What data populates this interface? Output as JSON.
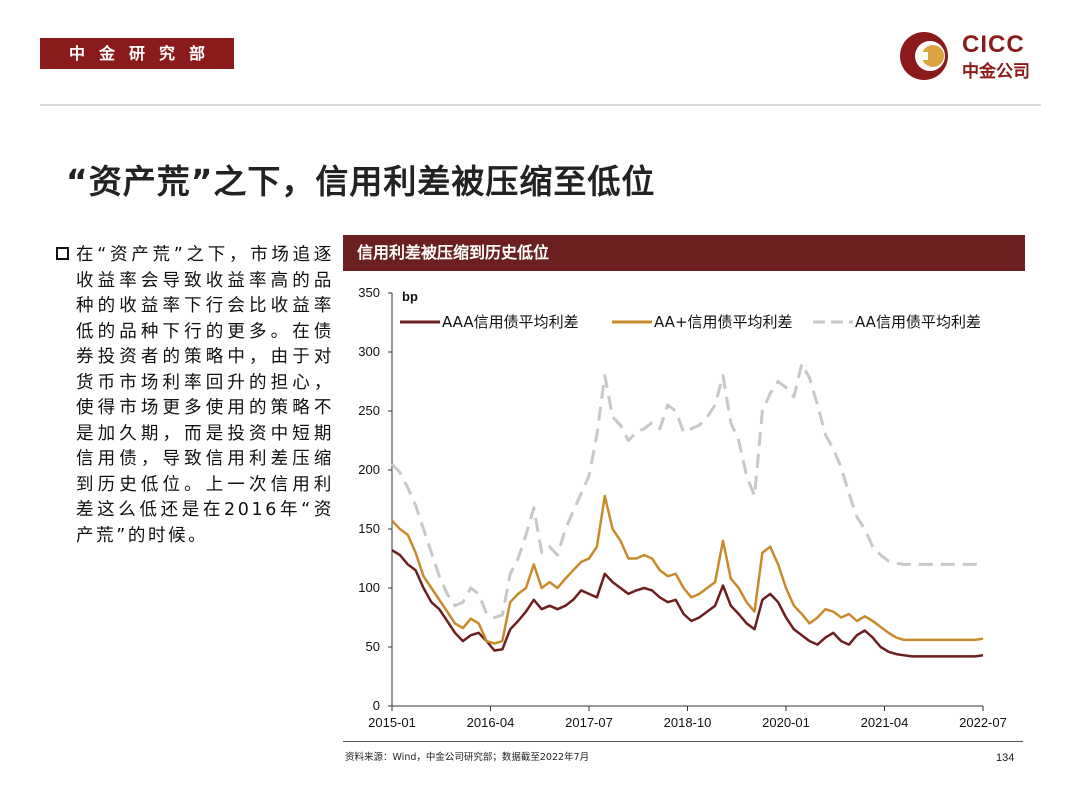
{
  "header": {
    "department": "中金研究部",
    "logo_en": "CICC",
    "logo_zh": "中金公司"
  },
  "page_title": "“资产荒”之下，信用利差被压缩至低位",
  "bullet": "在“资产荒”之下，市场追逐收益率会导致收益率高的品种的收益率下行会比收益率低的品种下行的更多。在债券投资者的策略中，由于对货币市场利率回升的担心，使得市场更多使用的策略不是加久期，而是投资中短期信用债，导致信用利差压缩到历史低位。上一次信用利差这么低还是在2016年“资产荒”的时候。",
  "footer": {
    "source": "资料来源：Wind，中金公司研究部；数据截至2022年7月",
    "page_number": "134"
  },
  "colors": {
    "brand": "#8B1A1A",
    "header_bar": "#6B1F1F",
    "aaa": "#6B1F1F",
    "aa_plus": "#C98A2E",
    "aa": "#C8C8C8"
  },
  "chart_data": {
    "type": "line",
    "title": "信用利差被压缩到历史低位",
    "ylabel": "bp",
    "xlabel": "",
    "ylim": [
      0,
      350
    ],
    "yticks": [
      0,
      50,
      100,
      150,
      200,
      250,
      300,
      350
    ],
    "xlim": [
      2015.0,
      2022.5
    ],
    "xtick_labels": [
      "2015-01",
      "2016-04",
      "2017-07",
      "2018-10",
      "2020-01",
      "2021-04",
      "2022-07"
    ],
    "xtick_values": [
      2015.0,
      2016.25,
      2017.5,
      2018.75,
      2020.0,
      2021.25,
      2022.5
    ],
    "legend_position": "top",
    "series": [
      {
        "name": "AAA信用债平均利差",
        "style": "solid",
        "x": [
          2015.0,
          2015.1,
          2015.2,
          2015.3,
          2015.4,
          2015.5,
          2015.6,
          2015.7,
          2015.8,
          2015.9,
          2016.0,
          2016.1,
          2016.2,
          2016.3,
          2016.4,
          2016.5,
          2016.6,
          2016.7,
          2016.8,
          2016.9,
          2017.0,
          2017.1,
          2017.2,
          2017.3,
          2017.4,
          2017.5,
          2017.6,
          2017.7,
          2017.8,
          2017.9,
          2018.0,
          2018.1,
          2018.2,
          2018.3,
          2018.4,
          2018.5,
          2018.6,
          2018.7,
          2018.8,
          2018.9,
          2019.0,
          2019.1,
          2019.2,
          2019.3,
          2019.4,
          2019.5,
          2019.6,
          2019.7,
          2019.8,
          2019.9,
          2020.0,
          2020.1,
          2020.2,
          2020.3,
          2020.4,
          2020.5,
          2020.6,
          2020.7,
          2020.8,
          2020.9,
          2021.0,
          2021.1,
          2021.2,
          2021.3,
          2021.4,
          2021.5,
          2021.6,
          2021.7,
          2021.8,
          2021.9,
          2022.0,
          2022.1,
          2022.2,
          2022.3,
          2022.4,
          2022.5
        ],
        "values": [
          132,
          128,
          120,
          115,
          100,
          88,
          82,
          72,
          62,
          55,
          60,
          62,
          55,
          47,
          48,
          65,
          72,
          80,
          90,
          82,
          85,
          82,
          85,
          90,
          98,
          95,
          92,
          112,
          105,
          100,
          95,
          98,
          100,
          98,
          92,
          88,
          90,
          78,
          72,
          75,
          80,
          85,
          102,
          85,
          78,
          70,
          65,
          90,
          95,
          88,
          75,
          65,
          60,
          55,
          52,
          58,
          62,
          55,
          52,
          60,
          64,
          58,
          50,
          46,
          44,
          43,
          42,
          42,
          42,
          42,
          42,
          42,
          42,
          42,
          42,
          43
        ]
      },
      {
        "name": "AA+信用债平均利差",
        "style": "solid",
        "x": [
          2015.0,
          2015.1,
          2015.2,
          2015.3,
          2015.4,
          2015.5,
          2015.6,
          2015.7,
          2015.8,
          2015.9,
          2016.0,
          2016.1,
          2016.2,
          2016.3,
          2016.4,
          2016.5,
          2016.6,
          2016.7,
          2016.8,
          2016.9,
          2017.0,
          2017.1,
          2017.2,
          2017.3,
          2017.4,
          2017.5,
          2017.6,
          2017.7,
          2017.8,
          2017.9,
          2018.0,
          2018.1,
          2018.2,
          2018.3,
          2018.4,
          2018.5,
          2018.6,
          2018.7,
          2018.8,
          2018.9,
          2019.0,
          2019.1,
          2019.2,
          2019.3,
          2019.4,
          2019.5,
          2019.6,
          2019.7,
          2019.8,
          2019.9,
          2020.0,
          2020.1,
          2020.2,
          2020.3,
          2020.4,
          2020.5,
          2020.6,
          2020.7,
          2020.8,
          2020.9,
          2021.0,
          2021.1,
          2021.2,
          2021.3,
          2021.4,
          2021.5,
          2021.6,
          2021.7,
          2021.8,
          2021.9,
          2022.0,
          2022.1,
          2022.2,
          2022.3,
          2022.4,
          2022.5
        ],
        "values": [
          157,
          150,
          145,
          130,
          110,
          100,
          90,
          80,
          70,
          66,
          74,
          70,
          55,
          53,
          55,
          88,
          95,
          100,
          120,
          100,
          105,
          100,
          108,
          115,
          122,
          125,
          135,
          178,
          150,
          140,
          125,
          125,
          128,
          125,
          115,
          110,
          112,
          100,
          92,
          95,
          100,
          105,
          140,
          108,
          100,
          88,
          80,
          130,
          135,
          120,
          100,
          85,
          78,
          70,
          75,
          82,
          80,
          75,
          78,
          72,
          76,
          72,
          67,
          62,
          58,
          56,
          56,
          56,
          56,
          56,
          56,
          56,
          56,
          56,
          56,
          57
        ]
      },
      {
        "name": "AA信用债平均利差",
        "style": "dashed",
        "x": [
          2015.0,
          2015.1,
          2015.2,
          2015.3,
          2015.4,
          2015.5,
          2015.6,
          2015.7,
          2015.8,
          2015.9,
          2016.0,
          2016.1,
          2016.2,
          2016.3,
          2016.4,
          2016.5,
          2016.6,
          2016.7,
          2016.8,
          2016.9,
          2017.0,
          2017.1,
          2017.2,
          2017.3,
          2017.4,
          2017.5,
          2017.6,
          2017.7,
          2017.8,
          2017.9,
          2018.0,
          2018.1,
          2018.2,
          2018.3,
          2018.4,
          2018.5,
          2018.6,
          2018.7,
          2018.8,
          2018.9,
          2019.0,
          2019.1,
          2019.2,
          2019.3,
          2019.4,
          2019.5,
          2019.6,
          2019.7,
          2019.8,
          2019.9,
          2020.0,
          2020.1,
          2020.2,
          2020.3,
          2020.4,
          2020.5,
          2020.6,
          2020.7,
          2020.8,
          2020.9,
          2021.0,
          2021.1,
          2021.2,
          2021.3,
          2021.4,
          2021.5,
          2021.6,
          2021.7,
          2021.8,
          2021.9,
          2022.0,
          2022.1,
          2022.2,
          2022.3,
          2022.4,
          2022.5
        ],
        "values": [
          205,
          198,
          185,
          170,
          150,
          130,
          110,
          95,
          85,
          88,
          100,
          95,
          78,
          75,
          77,
          112,
          125,
          145,
          168,
          130,
          135,
          128,
          150,
          165,
          180,
          195,
          230,
          280,
          245,
          238,
          225,
          232,
          235,
          240,
          235,
          255,
          250,
          232,
          235,
          238,
          245,
          255,
          280,
          240,
          225,
          195,
          178,
          250,
          265,
          275,
          270,
          262,
          290,
          278,
          255,
          230,
          218,
          202,
          180,
          160,
          150,
          135,
          128,
          123,
          121,
          120,
          120,
          120,
          120,
          120,
          120,
          120,
          120,
          120,
          120,
          120
        ]
      }
    ]
  }
}
